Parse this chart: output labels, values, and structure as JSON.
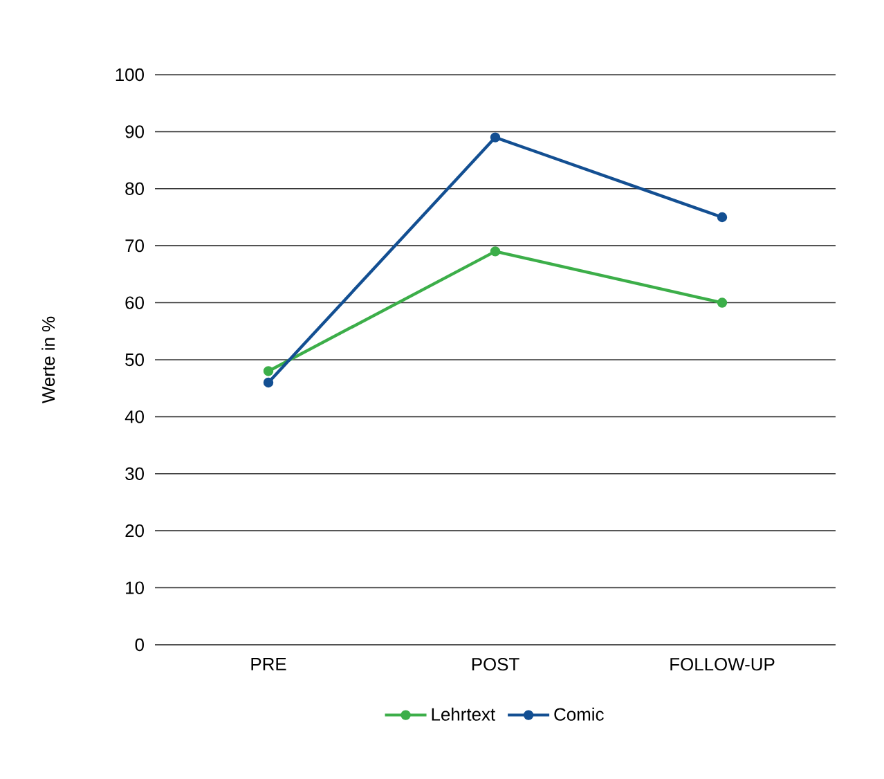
{
  "chart_data": {
    "type": "line",
    "ylabel": "Werte in %",
    "categories": [
      "PRE",
      "POST",
      "FOLLOW-UP"
    ],
    "series": [
      {
        "name": "Lehrtext",
        "color": "#3cae49",
        "values": [
          48,
          69,
          60
        ]
      },
      {
        "name": "Comic",
        "color": "#134f92",
        "values": [
          46,
          89,
          75
        ]
      }
    ],
    "ylim": [
      0,
      100
    ],
    "yticks": [
      0,
      10,
      20,
      30,
      40,
      50,
      60,
      70,
      80,
      90,
      100
    ],
    "grid": "y",
    "legend": "bottom",
    "marker": "circle",
    "line_style": "solid"
  }
}
